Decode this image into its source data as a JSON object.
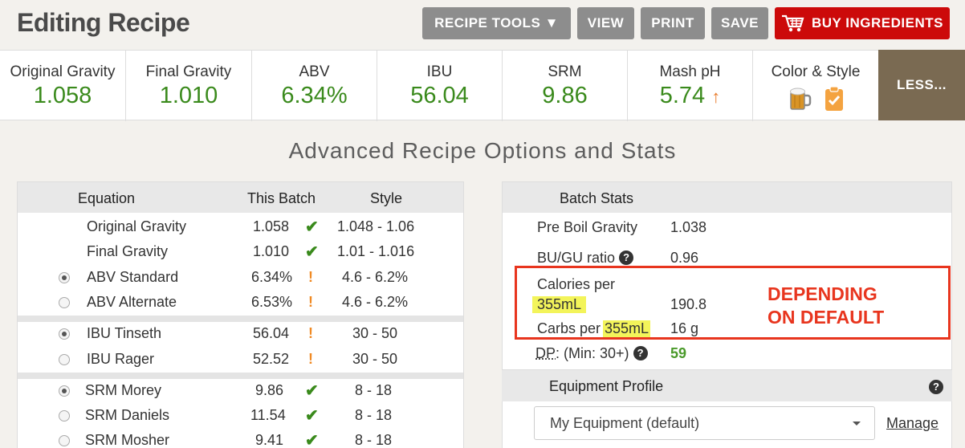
{
  "header": {
    "title": "Editing Recipe",
    "buttons": {
      "recipe_tools": "RECIPE TOOLS ▼",
      "view": "VIEW",
      "print": "PRINT",
      "save": "SAVE",
      "buy": "BUY INGREDIENTS"
    }
  },
  "stats": {
    "og": {
      "label": "Original Gravity",
      "value": "1.058"
    },
    "fg": {
      "label": "Final Gravity",
      "value": "1.010"
    },
    "abv": {
      "label": "ABV",
      "value": "6.34%"
    },
    "ibu": {
      "label": "IBU",
      "value": "56.04"
    },
    "srm": {
      "label": "SRM",
      "value": "9.86"
    },
    "mash_ph": {
      "label": "Mash pH",
      "value": "5.74",
      "arrow": "↑"
    },
    "color_style": {
      "label": "Color & Style"
    },
    "less": "LESS..."
  },
  "section_title": "Advanced Recipe Options and Stats",
  "equation_panel": {
    "headers": {
      "equation": "Equation",
      "batch": "This Batch",
      "style": "Style"
    },
    "rows": [
      {
        "name": "Original Gravity",
        "batch": "1.058",
        "mark": "✔",
        "style": "1.048 - 1.06"
      },
      {
        "name": "Final Gravity",
        "batch": "1.010",
        "mark": "✔",
        "style": "1.01 - 1.016"
      },
      {
        "name": "ABV Standard",
        "batch": "6.34%",
        "mark": "!",
        "style": "4.6 - 6.2%"
      },
      {
        "name": "ABV Alternate",
        "batch": "6.53%",
        "mark": "!",
        "style": "4.6 - 6.2%"
      },
      {
        "name": "IBU Tinseth",
        "batch": "56.04",
        "mark": "!",
        "style": "30 - 50"
      },
      {
        "name": "IBU Rager",
        "batch": "52.52",
        "mark": "!",
        "style": "30 - 50"
      },
      {
        "name": "SRM Morey",
        "batch": "9.86",
        "mark": "✔",
        "style": "8 - 18"
      },
      {
        "name": "SRM Daniels",
        "batch": "11.54",
        "mark": "✔",
        "style": "8 - 18"
      },
      {
        "name": "SRM Mosher",
        "batch": "9.41",
        "mark": "✔",
        "style": "8 - 18"
      }
    ]
  },
  "batch_stats": {
    "title": "Batch Stats",
    "pre_boil_label": "Pre Boil Gravity",
    "pre_boil_value": "1.038",
    "bugu_label": "BU/GU ratio",
    "bugu_value": "0.96",
    "calories_label": "Calories per",
    "calories_unit": "355mL",
    "calories_value": "190.8",
    "carbs_label": "Carbs per",
    "carbs_unit": "355mL",
    "carbs_value": "16 g",
    "dp_label": "DP",
    "dp_min": ": (Min: 30+)",
    "dp_value": "59",
    "help_glyph": "?"
  },
  "annotation": {
    "line1": "DEPENDING",
    "line2": "ON DEFAULT"
  },
  "equipment": {
    "title": "Equipment Profile",
    "selected": "My Equipment (default)",
    "manage": "Manage"
  }
}
